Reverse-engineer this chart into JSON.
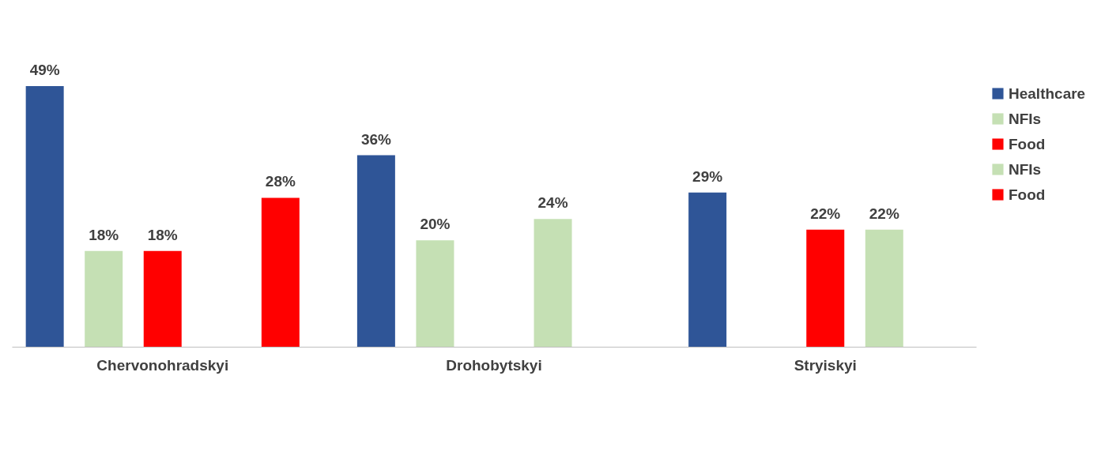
{
  "chart_data": {
    "type": "bar",
    "categories": [
      "Chervonohradskyi",
      "Drohobytskyi",
      "Stryiskyi"
    ],
    "series": [
      {
        "name": "Healthcare",
        "color": "#2f5597",
        "values": [
          49,
          36,
          29
        ],
        "value_labels": [
          "49%",
          "36%",
          "29%"
        ]
      },
      {
        "name": "NFIs",
        "color": "#c5e0b4",
        "values": [
          18,
          20,
          null
        ],
        "value_labels": [
          "18%",
          "20%",
          null
        ]
      },
      {
        "name": "Food",
        "color": "#ff0000",
        "values": [
          18,
          null,
          22
        ],
        "value_labels": [
          "18%",
          null,
          "22%"
        ]
      },
      {
        "name": "NFIs",
        "color": "#c5e0b4",
        "values": [
          null,
          24,
          22
        ],
        "value_labels": [
          null,
          "24%",
          "22%"
        ]
      },
      {
        "name": "Food",
        "color": "#ff0000",
        "values": [
          28,
          null,
          null
        ],
        "value_labels": [
          "28%",
          null,
          null
        ]
      }
    ],
    "legend": "right",
    "grid": false,
    "tick_labels": "x"
  }
}
